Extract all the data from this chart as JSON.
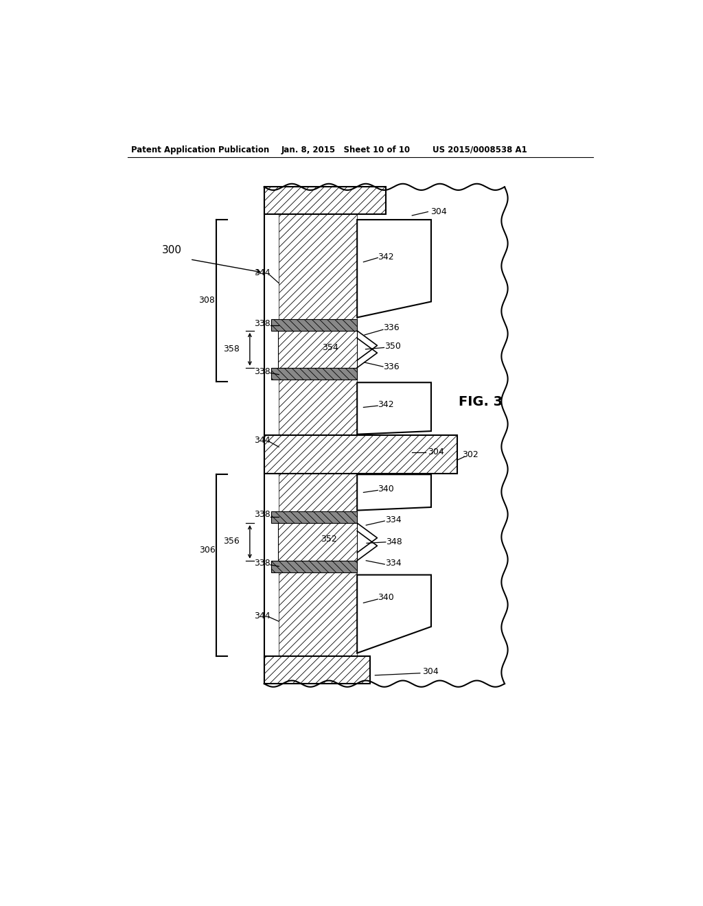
{
  "bg_color": "#ffffff",
  "header_left": "Patent Application Publication",
  "header_mid": "Jan. 8, 2015   Sheet 10 of 10",
  "header_right": "US 2015/0008538 A1",
  "fig_label": "FIG. 3",
  "lw": 1.5,
  "hlw": 0.6
}
